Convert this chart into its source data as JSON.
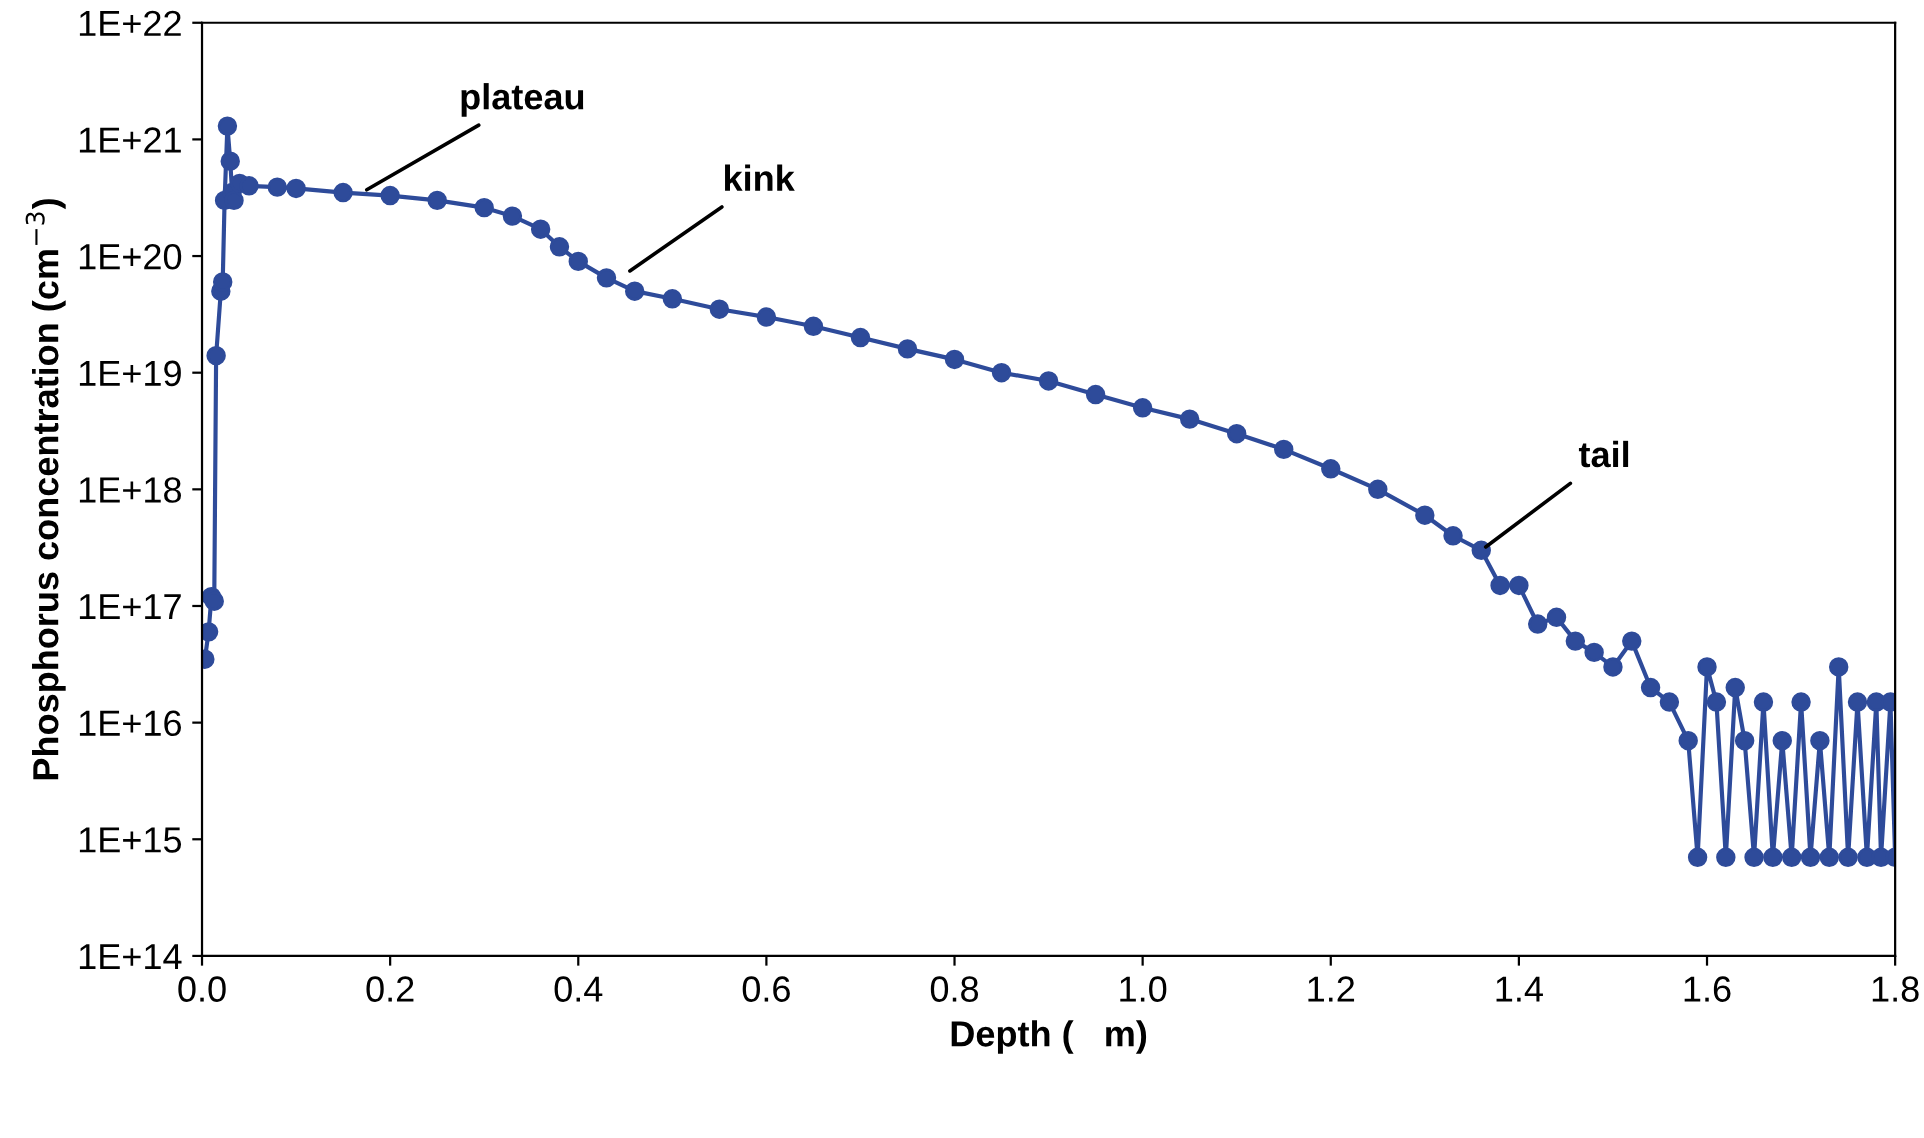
{
  "chart_data": {
    "type": "line",
    "xlabel": "Depth (   m)",
    "ylabel": "Phosphorus concentration (cm$^{−3}$)",
    "log": "y",
    "grid": false,
    "marker": "circle",
    "line_style": "solid",
    "xlim": [
      0,
      1.8
    ],
    "xticks": [
      {
        "value": 0,
        "label": "0.0"
      },
      0.2,
      0.4,
      0.6,
      0.8,
      {
        "value": 1,
        "label": "1.0"
      },
      1.2,
      1.4,
      1.6,
      1.8
    ],
    "ylim": [
      100000000000000.0,
      1e+22
    ],
    "yticks": [
      {
        "value": 100000000000000.0,
        "label": "1E+14"
      },
      {
        "value": 1000000000000000.0,
        "label": "1E+15"
      },
      {
        "value": 1e+16,
        "label": "1E+16"
      },
      {
        "value": 1e+17,
        "label": "1E+17"
      },
      {
        "value": 1e+18,
        "label": "1E+18"
      },
      {
        "value": 1e+19,
        "label": "1E+19"
      },
      {
        "value": 1e+20,
        "label": "1E+20"
      },
      {
        "value": 1e+21,
        "label": "1E+21"
      },
      {
        "value": 1e+22,
        "label": "1E+22"
      }
    ],
    "annotations": [
      {
        "text": "plateau",
        "x": 0.17,
        "y": 3.5e+20
      },
      {
        "text": "kink",
        "x": 0.45,
        "y": 7e+19
      },
      {
        "text": "tail",
        "x": 1.36,
        "y": 3e+17
      }
    ],
    "series": [
      {
        "color": "#2e4b9a",
        "x": [
          0.003,
          0.007,
          0.01,
          0.013,
          0.015,
          0.02,
          0.022,
          0.024,
          0.027,
          0.03,
          0.032,
          0.034,
          0.04,
          0.05,
          0.08,
          0.1,
          0.15,
          0.2,
          0.25,
          0.3,
          0.33,
          0.36,
          0.38,
          0.4,
          0.43,
          0.46,
          0.5,
          0.55,
          0.6,
          0.65,
          0.7,
          0.75,
          0.8,
          0.85,
          0.9,
          0.95,
          1.0,
          1.05,
          1.1,
          1.15,
          1.2,
          1.25,
          1.3,
          1.33,
          1.36,
          1.38,
          1.4,
          1.42,
          1.44,
          1.46,
          1.48,
          1.5,
          1.52,
          1.54,
          1.56,
          1.58,
          1.59,
          1.6,
          1.61,
          1.62,
          1.63,
          1.64,
          1.65,
          1.66,
          1.67,
          1.68,
          1.69,
          1.7,
          1.71,
          1.72,
          1.73,
          1.74,
          1.75,
          1.76,
          1.77,
          1.78,
          1.785,
          1.795,
          1.8
        ],
        "values": [
          3.5e+16,
          6e+16,
          1.2e+17,
          1.1e+17,
          1.4e+19,
          5e+19,
          6e+19,
          3e+20,
          1.3e+21,
          6.5e+20,
          3.5e+20,
          3e+20,
          4.2e+20,
          4e+20,
          3.9e+20,
          3.8e+20,
          3.5e+20,
          3.3e+20,
          3e+20,
          2.6e+20,
          2.2e+20,
          1.7e+20,
          1.2e+20,
          9e+19,
          6.5e+19,
          5e+19,
          4.3e+19,
          3.5e+19,
          3e+19,
          2.5e+19,
          2e+19,
          1.6e+19,
          1.3e+19,
          1e+19,
          8.5e+18,
          6.5e+18,
          5e+18,
          4e+18,
          3e+18,
          2.2e+18,
          1.5e+18,
          1e+18,
          6e+17,
          4e+17,
          3e+17,
          1.5e+17,
          1.5e+17,
          7e+16,
          8e+16,
          5e+16,
          4e+16,
          3e+16,
          5e+16,
          2e+16,
          1.5e+16,
          7000000000000000.0,
          700000000000000.0,
          3e+16,
          1.5e+16,
          700000000000000.0,
          2e+16,
          7000000000000000.0,
          700000000000000.0,
          1.5e+16,
          700000000000000.0,
          7000000000000000.0,
          700000000000000.0,
          1.5e+16,
          700000000000000.0,
          7000000000000000.0,
          700000000000000.0,
          3e+16,
          700000000000000.0,
          1.5e+16,
          700000000000000.0,
          1.5e+16,
          700000000000000.0,
          1.5e+16,
          700000000000000.0
        ]
      }
    ]
  }
}
